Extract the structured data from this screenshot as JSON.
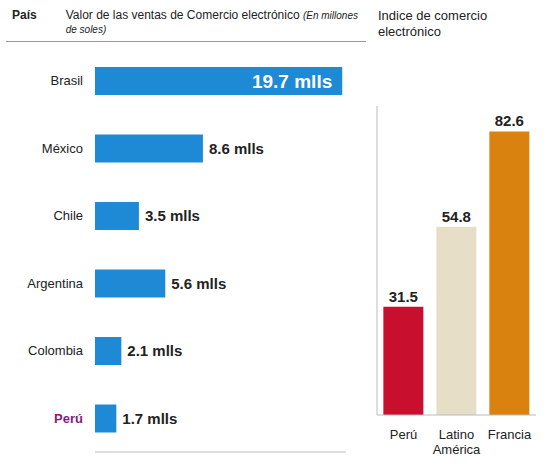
{
  "chart_data": [
    {
      "type": "bar",
      "orientation": "horizontal",
      "title": "Valor de las ventas de Comercio electrónico",
      "subtitle": "(En millones de soles)",
      "y_label": "País",
      "categories": [
        "Brasil",
        "México",
        "Chile",
        "Argentina",
        "Colombia",
        "Perú"
      ],
      "values": [
        19.7,
        8.6,
        3.5,
        5.6,
        2.1,
        1.7
      ],
      "value_labels": [
        "19.7 mlls",
        "8.6 mlls",
        "3.5 mlls",
        "5.6 mlls",
        "2.1 mlls",
        "1.7 mlls"
      ],
      "color": "#1e8ad6",
      "xlim": [
        0,
        20
      ],
      "data_labels": true,
      "tick_labels": "y"
    },
    {
      "type": "bar",
      "title": "Indice de comercio electrónico",
      "categories": [
        "Perú",
        "Latino América",
        "Francia"
      ],
      "values": [
        31.5,
        54.8,
        82.6
      ],
      "colors": [
        "#c8102e",
        "#e6dec6",
        "#d9820f"
      ],
      "ylim": [
        0,
        90
      ],
      "data_labels": true,
      "tick_labels": "x"
    }
  ]
}
